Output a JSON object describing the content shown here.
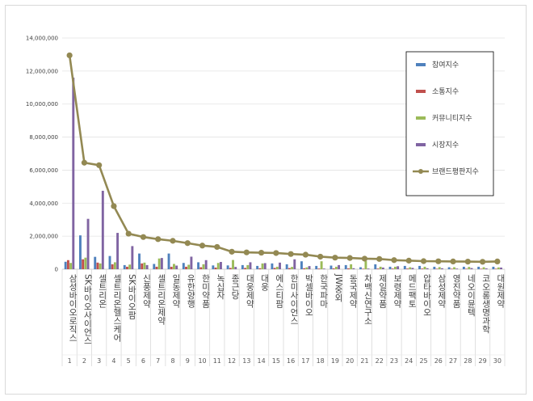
{
  "chart_data": {
    "type": "bar",
    "title": "",
    "xlabel": "",
    "ylabel": "",
    "ylim": [
      0,
      14000000
    ],
    "yticks": [
      0,
      2000000,
      4000000,
      6000000,
      8000000,
      10000000,
      12000000,
      14000000
    ],
    "ytick_labels": [
      "0",
      "2,000,000",
      "4,000,000",
      "6,000,000",
      "8,000,000",
      "10,000,000",
      "12,000,000",
      "14,000,000"
    ],
    "grid": true,
    "legend_position": "right",
    "categories": [
      "삼성바이오로직스",
      "SK바이오사이언스",
      "셀트리온",
      "셀트리온헬스케어",
      "SK바이오팜",
      "신풍제약",
      "셀트리온제약",
      "일동제약",
      "유한양행",
      "한미약품",
      "녹십자",
      "종근당",
      "대웅제약",
      "대웅",
      "에스티팜",
      "한미사이언스",
      "박셀바이오",
      "한국파마",
      "JW중외",
      "동국제약",
      "차백신연구소",
      "제일약품",
      "보령제약",
      "메드팩토",
      "압타바이오",
      "삼성제약",
      "영진약품",
      "네오이뮨텍",
      "코오롱생명과학",
      "대원제약"
    ],
    "category_labels": [
      "삼성바이오로직스",
      "SK바이오사이언스",
      "셀트리온",
      "셀트리온헬스케어",
      "SK바이오팜",
      "신풍제약",
      "셀트리온제약",
      "일동제약",
      "유한양행",
      "한미약품",
      "녹십자",
      "종근당",
      "대웅제약",
      "대웅",
      "에스티팜",
      "한미사이언스",
      "박셀바이오",
      "한국파마",
      "JW중외",
      "동국제약",
      "차백신연구소",
      "제일약품",
      "보령제약",
      "메드팩토",
      "압타바이오",
      "삼성제약",
      "영진약품",
      "네오이뮨텍",
      "코오롱생명과학",
      "대원제약"
    ],
    "ranks": [
      "1",
      "2",
      "3",
      "4",
      "5",
      "6",
      "7",
      "8",
      "9",
      "10",
      "11",
      "12",
      "13",
      "14",
      "15",
      "16",
      "17",
      "18",
      "19",
      "20",
      "21",
      "22",
      "23",
      "24",
      "25",
      "26",
      "27",
      "28",
      "29",
      "30"
    ],
    "series": [
      {
        "name": "참여지수",
        "kind": "bar",
        "color": "#4f81bd",
        "values": [
          450000,
          2050000,
          750000,
          800000,
          250000,
          950000,
          320000,
          950000,
          380000,
          420000,
          230000,
          230000,
          250000,
          200000,
          350000,
          300000,
          480000,
          200000,
          220000,
          250000,
          120000,
          300000,
          150000,
          200000,
          200000,
          150000,
          120000,
          150000,
          150000,
          150000
        ]
      },
      {
        "name": "소통지수",
        "kind": "bar",
        "color": "#c0504d",
        "values": [
          550000,
          600000,
          400000,
          300000,
          150000,
          350000,
          150000,
          150000,
          150000,
          120000,
          100000,
          80000,
          80000,
          60000,
          80000,
          70000,
          60000,
          40000,
          50000,
          50000,
          30000,
          40000,
          40000,
          40000,
          40000,
          30000,
          30000,
          30000,
          30000,
          30000
        ]
      },
      {
        "name": "커뮤니티지수",
        "kind": "bar",
        "color": "#9bbb59",
        "values": [
          380000,
          700000,
          350000,
          420000,
          280000,
          400000,
          650000,
          320000,
          270000,
          300000,
          380000,
          560000,
          250000,
          350000,
          150000,
          140000,
          110000,
          480000,
          150000,
          300000,
          500000,
          150000,
          150000,
          120000,
          150000,
          130000,
          120000,
          140000,
          120000,
          110000
        ]
      },
      {
        "name": "시장지수",
        "kind": "bar",
        "color": "#8064a2",
        "values": [
          11600000,
          3050000,
          4750000,
          2200000,
          1400000,
          250000,
          680000,
          220000,
          760000,
          550000,
          440000,
          140000,
          420000,
          370000,
          400000,
          600000,
          190000,
          40000,
          250000,
          60000,
          40000,
          100000,
          180000,
          80000,
          60000,
          60000,
          40000,
          70000,
          50000,
          100000
        ]
      },
      {
        "name": "브랜드평판지수",
        "kind": "line",
        "color": "#938953",
        "values": [
          12950000,
          6450000,
          6300000,
          3820000,
          2150000,
          1950000,
          1820000,
          1720000,
          1580000,
          1430000,
          1350000,
          1060000,
          1020000,
          1000000,
          980000,
          920000,
          880000,
          760000,
          700000,
          680000,
          640000,
          620000,
          550000,
          520000,
          490000,
          480000,
          470000,
          460000,
          450000,
          470000
        ]
      }
    ]
  }
}
